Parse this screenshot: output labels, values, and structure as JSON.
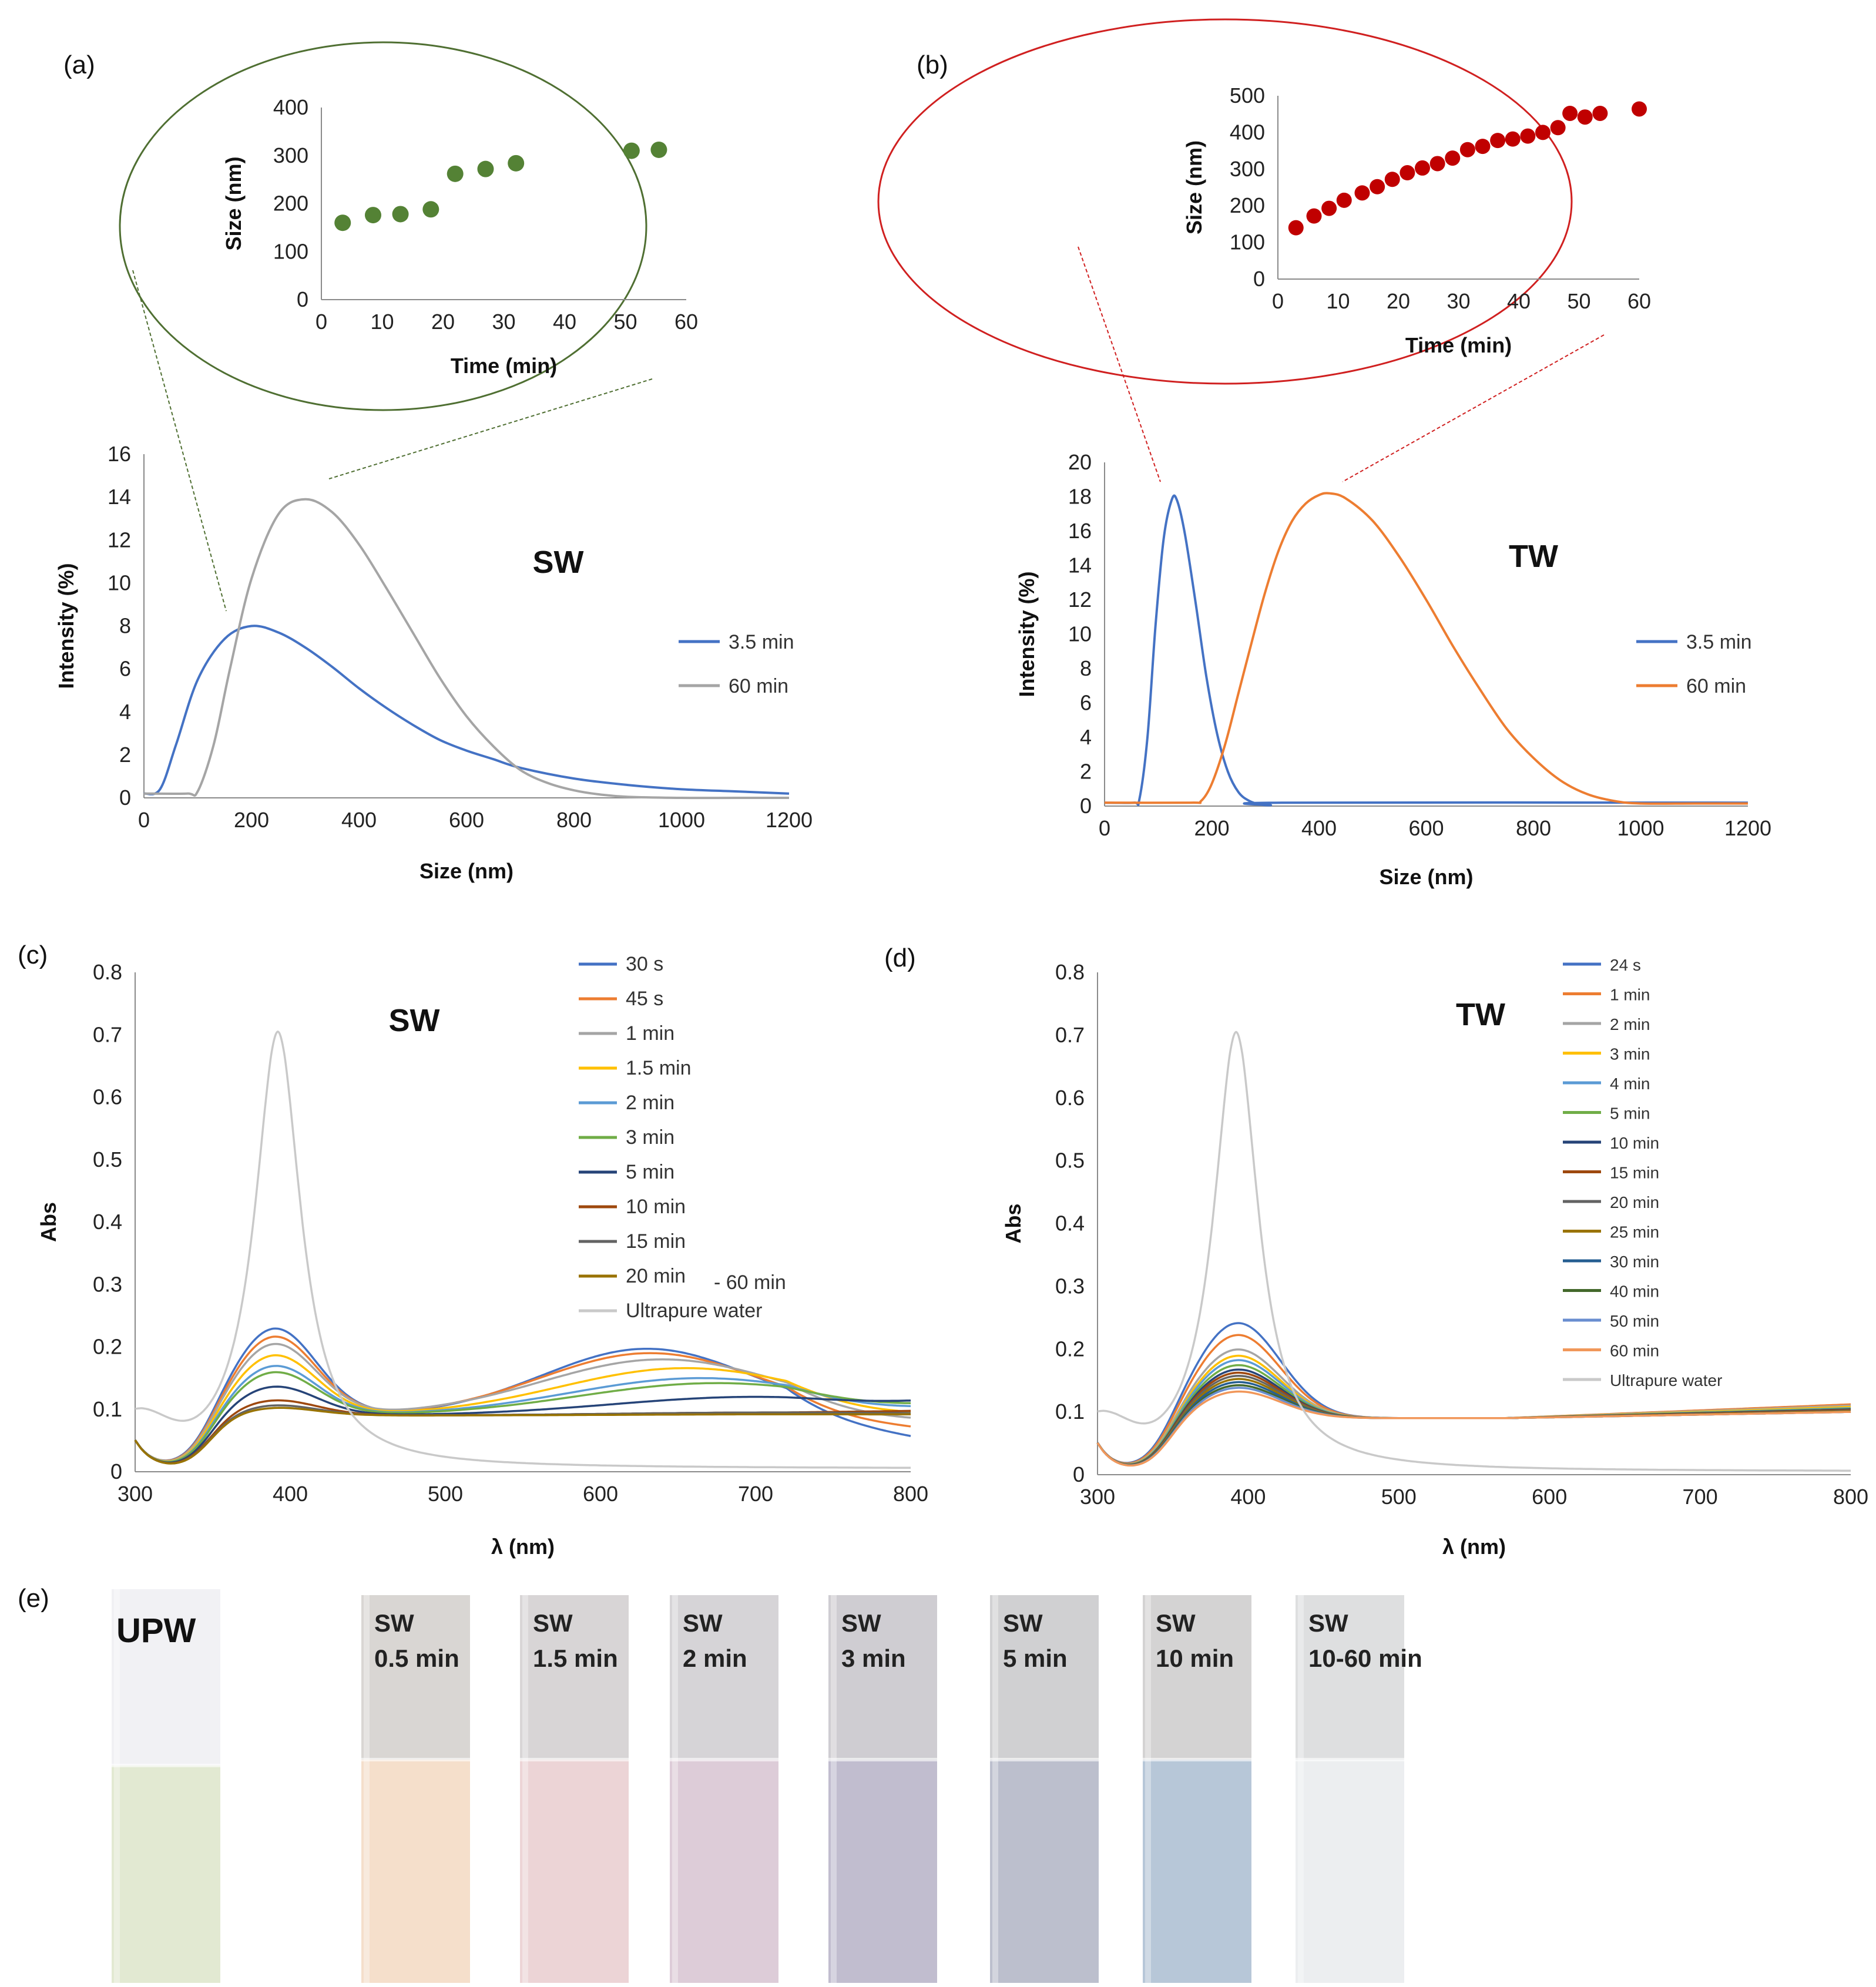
{
  "panel_labels": [
    "(a)",
    "(b)",
    "(c)",
    "(d)",
    "(e)"
  ],
  "colors": {
    "blue": "#4472c4",
    "gray": "#a5a5a5",
    "orange": "#ed7d31",
    "green_marker": "#548235",
    "green_ring": "#4f6f32",
    "red_marker": "#c00000",
    "red_ring": "#d02020"
  },
  "chart_data": [
    {
      "id": "a-inset",
      "type": "scatter",
      "xlabel": "Time (min)",
      "ylabel": "Size (nm)",
      "xlim": [
        0,
        60
      ],
      "ylim": [
        0,
        400
      ],
      "xticks": [
        0,
        10,
        20,
        30,
        40,
        50,
        60
      ],
      "yticks": [
        0,
        100,
        200,
        300,
        400
      ],
      "marker_color": "#548235",
      "points": [
        [
          3.5,
          160
        ],
        [
          8.5,
          176
        ],
        [
          13,
          178
        ],
        [
          18,
          188
        ],
        [
          22,
          262
        ],
        [
          27,
          272
        ],
        [
          32,
          284
        ],
        [
          51,
          310
        ],
        [
          55.5,
          312
        ]
      ]
    },
    {
      "id": "a-main",
      "type": "line",
      "title": "SW",
      "xlabel": "Size (nm)",
      "ylabel": "Intensity (%)",
      "xlim": [
        0,
        1200
      ],
      "ylim": [
        0,
        16
      ],
      "xticks": [
        0,
        200,
        400,
        600,
        800,
        1000,
        1200
      ],
      "yticks": [
        0,
        2,
        4,
        6,
        8,
        10,
        12,
        14,
        16
      ],
      "series": [
        {
          "name": "3.5 min",
          "color": "#4472c4",
          "x": [
            0,
            30,
            60,
            100,
            150,
            200,
            250,
            300,
            350,
            400,
            450,
            500,
            550,
            600,
            650,
            700,
            800,
            900,
            1000,
            1100,
            1200
          ],
          "y": [
            0.2,
            0.4,
            2.5,
            5.5,
            7.4,
            8.0,
            7.7,
            7.0,
            6.1,
            5.1,
            4.2,
            3.4,
            2.7,
            2.2,
            1.8,
            1.4,
            0.9,
            0.6,
            0.4,
            0.3,
            0.2
          ]
        },
        {
          "name": "60 min",
          "color": "#a5a5a5",
          "x": [
            0,
            80,
            100,
            130,
            160,
            200,
            250,
            300,
            350,
            400,
            450,
            500,
            550,
            600,
            650,
            700,
            750,
            800,
            850,
            900,
            1000,
            1100,
            1200
          ],
          "y": [
            0.2,
            0.2,
            0.3,
            2.5,
            6.0,
            10.2,
            13.2,
            13.9,
            13.3,
            11.8,
            9.8,
            7.7,
            5.6,
            3.8,
            2.4,
            1.3,
            0.7,
            0.35,
            0.15,
            0.05,
            0,
            0,
            0
          ]
        }
      ]
    },
    {
      "id": "b-inset",
      "type": "scatter",
      "xlabel": "Time (min)",
      "ylabel": "Size (nm)",
      "xlim": [
        0,
        60
      ],
      "ylim": [
        0,
        500
      ],
      "xticks": [
        0,
        10,
        20,
        30,
        40,
        50,
        60
      ],
      "yticks": [
        0,
        100,
        200,
        300,
        400,
        500
      ],
      "marker_color": "#c00000",
      "points": [
        [
          3,
          140
        ],
        [
          6,
          172
        ],
        [
          8.5,
          193
        ],
        [
          11,
          215
        ],
        [
          14,
          235
        ],
        [
          16.5,
          252
        ],
        [
          19,
          272
        ],
        [
          21.5,
          290
        ],
        [
          24,
          303
        ],
        [
          26.5,
          315
        ],
        [
          29,
          330
        ],
        [
          31.5,
          353
        ],
        [
          34,
          362
        ],
        [
          36.5,
          378
        ],
        [
          39,
          382
        ],
        [
          41.5,
          390
        ],
        [
          44,
          400
        ],
        [
          46.5,
          413
        ],
        [
          48.5,
          452
        ],
        [
          51,
          442
        ],
        [
          53.5,
          452
        ],
        [
          60,
          464
        ]
      ]
    },
    {
      "id": "b-main",
      "type": "line",
      "title": "TW",
      "xlabel": "Size (nm)",
      "ylabel": "Intensity (%)",
      "xlim": [
        0,
        1200
      ],
      "ylim": [
        0,
        20
      ],
      "xticks": [
        0,
        200,
        400,
        600,
        800,
        1000,
        1200
      ],
      "yticks": [
        0,
        2,
        4,
        6,
        8,
        10,
        12,
        14,
        16,
        18,
        20
      ],
      "series": [
        {
          "name": "3.5 min",
          "color": "#4472c4",
          "x": [
            0,
            55,
            65,
            80,
            95,
            110,
            125,
            135,
            150,
            170,
            190,
            210,
            230,
            250,
            270,
            290,
            310,
            330,
            1200
          ],
          "y": [
            0.2,
            0.2,
            0.4,
            4.0,
            10.5,
            15.5,
            17.8,
            17.8,
            15.8,
            11.8,
            7.5,
            4.2,
            2.0,
            0.8,
            0.3,
            0.1,
            0.05,
            0.2,
            0.2
          ]
        },
        {
          "name": "60 min",
          "color": "#ed7d31",
          "x": [
            0,
            160,
            180,
            200,
            225,
            250,
            275,
            300,
            325,
            350,
            375,
            400,
            420,
            450,
            500,
            550,
            600,
            650,
            700,
            750,
            800,
            850,
            900,
            950,
            1000,
            1100,
            1200
          ],
          "y": [
            0.2,
            0.2,
            0.3,
            1.3,
            3.6,
            6.6,
            9.6,
            12.5,
            14.9,
            16.6,
            17.6,
            18.1,
            18.2,
            17.9,
            16.6,
            14.5,
            12.0,
            9.3,
            6.8,
            4.5,
            2.8,
            1.5,
            0.7,
            0.3,
            0.15,
            0.15,
            0.15
          ]
        }
      ]
    },
    {
      "id": "c",
      "type": "line",
      "title": "SW",
      "xlabel": "λ (nm)",
      "ylabel": "Abs",
      "xlim": [
        300,
        800
      ],
      "ylim": [
        0,
        0.8
      ],
      "xticks": [
        300,
        400,
        500,
        600,
        700,
        800
      ],
      "yticks": [
        0,
        0.1,
        0.2,
        0.3,
        0.4,
        0.5,
        0.6,
        0.7,
        0.8
      ],
      "annotation": "- 60 min",
      "series": [
        {
          "name": "30 s",
          "color": "#4472c4",
          "params": [
            0.225,
            0.197,
            630,
            95,
            0.053
          ]
        },
        {
          "name": "45 s",
          "color": "#ed7d31",
          "params": [
            0.212,
            0.19,
            632,
            100,
            0.07
          ]
        },
        {
          "name": "1 min",
          "color": "#a5a5a5",
          "params": [
            0.2,
            0.18,
            640,
            110,
            0.085
          ]
        },
        {
          "name": "1.5 min",
          "color": "#ffc000",
          "params": [
            0.182,
            0.166,
            655,
            115,
            0.095
          ]
        },
        {
          "name": "2 min",
          "color": "#5b9bd5",
          "params": [
            0.165,
            0.15,
            665,
            120,
            0.105
          ]
        },
        {
          "name": "3 min",
          "color": "#70ad47",
          "params": [
            0.155,
            0.142,
            675,
            125,
            0.11
          ]
        },
        {
          "name": "5 min",
          "color": "#264478",
          "params": [
            0.132,
            0.12,
            700,
            130,
            0.115
          ]
        },
        {
          "name": "10 min",
          "color": "#9e480e",
          "params": [
            0.11,
            0.095,
            720,
            150,
            0.098
          ]
        },
        {
          "name": "15 min",
          "color": "#636363",
          "params": [
            0.102,
            0.095,
            720,
            150,
            0.094
          ]
        },
        {
          "name": "20 min",
          "color": "#997300",
          "params": [
            0.098,
            0.092,
            720,
            150,
            0.092
          ]
        },
        {
          "name": "Ultrapure water",
          "color": "#c9c9c9",
          "params": [
            0.71,
            0,
            0,
            0,
            0
          ]
        }
      ]
    },
    {
      "id": "d",
      "type": "line",
      "title": "TW",
      "xlabel": "λ (nm)",
      "ylabel": "Abs",
      "xlim": [
        300,
        800
      ],
      "ylim": [
        0,
        0.8
      ],
      "xticks": [
        300,
        400,
        500,
        600,
        700,
        800
      ],
      "yticks": [
        0,
        0.1,
        0.2,
        0.3,
        0.4,
        0.5,
        0.6,
        0.7,
        0.8
      ],
      "series": [
        {
          "name": "24 s",
          "color": "#4472c4",
          "params": [
            0.237,
            0.105
          ]
        },
        {
          "name": "1 min",
          "color": "#ed7d31",
          "params": [
            0.218,
            0.112
          ]
        },
        {
          "name": "2 min",
          "color": "#a5a5a5",
          "params": [
            0.195,
            0.11
          ]
        },
        {
          "name": "3 min",
          "color": "#ffc000",
          "params": [
            0.185,
            0.108
          ]
        },
        {
          "name": "4 min",
          "color": "#5b9bd5",
          "params": [
            0.178,
            0.106
          ]
        },
        {
          "name": "5 min",
          "color": "#70ad47",
          "params": [
            0.17,
            0.105
          ]
        },
        {
          "name": "10 min",
          "color": "#264478",
          "params": [
            0.163,
            0.104
          ]
        },
        {
          "name": "15 min",
          "color": "#9e480e",
          "params": [
            0.158,
            0.103
          ]
        },
        {
          "name": "20 min",
          "color": "#636363",
          "params": [
            0.153,
            0.102
          ]
        },
        {
          "name": "25 min",
          "color": "#997300",
          "params": [
            0.148,
            0.101
          ]
        },
        {
          "name": "30 min",
          "color": "#255e91",
          "params": [
            0.143,
            0.1
          ]
        },
        {
          "name": "40 min",
          "color": "#43682b",
          "params": [
            0.138,
            0.1
          ]
        },
        {
          "name": "50 min",
          "color": "#698ed0",
          "params": [
            0.134,
            0.1
          ]
        },
        {
          "name": "60 min",
          "color": "#f1975a",
          "params": [
            0.128,
            0.1
          ]
        },
        {
          "name": "Ultrapure water",
          "color": "#c9c9c9",
          "params": [
            0.71,
            0
          ]
        }
      ]
    }
  ],
  "vials": [
    {
      "line1": "UPW",
      "line2": "",
      "liquid": "#e2e9d2",
      "head": "#f1f1f4"
    },
    {
      "line1": "SW",
      "line2": "0.5 min",
      "liquid": "#f5dfcb",
      "head": "#d9d6d3"
    },
    {
      "line1": "SW",
      "line2": "1.5 min",
      "liquid": "#ecd4d6",
      "head": "#d8d5d6"
    },
    {
      "line1": "SW",
      "line2": "2 min",
      "liquid": "#ddccd8",
      "head": "#d6d4d7"
    },
    {
      "line1": "SW",
      "line2": "3 min",
      "liquid": "#c1bdcf",
      "head": "#cfcdd2"
    },
    {
      "line1": "SW",
      "line2": "5 min",
      "liquid": "#bcbfcd",
      "head": "#d0d0d2"
    },
    {
      "line1": "SW",
      "line2": "10 min",
      "liquid": "#b7c7d8",
      "head": "#d4d3d3"
    },
    {
      "line1": "SW",
      "line2": "10-60 min",
      "liquid": "#eceef0",
      "head": "#dedfe0"
    }
  ]
}
